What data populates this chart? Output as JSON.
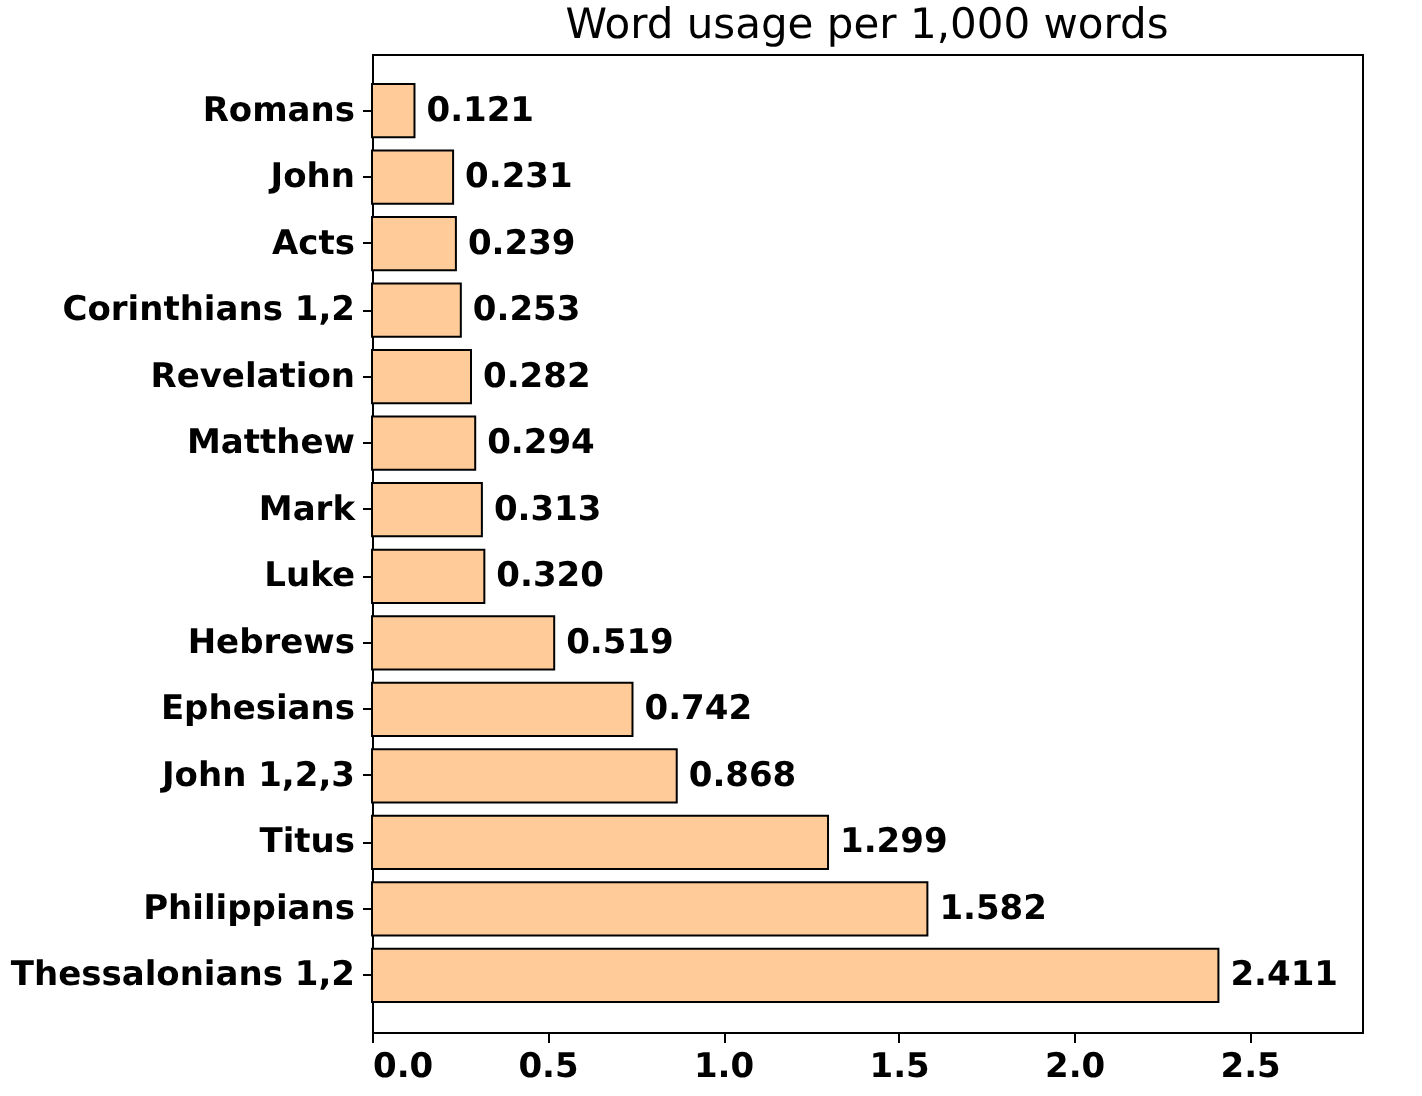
{
  "chart_data": {
    "type": "bar",
    "orientation": "horizontal",
    "title": "Word usage per 1,000 words",
    "categories": [
      "Romans",
      "John",
      "Acts",
      "Corinthians 1,2",
      "Revelation",
      "Matthew",
      "Mark",
      "Luke",
      "Hebrews",
      "Ephesians",
      "John 1,2,3",
      "Titus",
      "Philippians",
      "Thessalonians 1,2"
    ],
    "values": [
      0.121,
      0.231,
      0.239,
      0.253,
      0.282,
      0.294,
      0.313,
      0.32,
      0.519,
      0.742,
      0.868,
      1.299,
      1.582,
      2.411
    ],
    "value_labels": [
      "0.121",
      "0.231",
      "0.239",
      "0.253",
      "0.282",
      "0.294",
      "0.313",
      "0.320",
      "0.519",
      "0.742",
      "0.868",
      "1.299",
      "1.582",
      "2.411"
    ],
    "color": "#ffcc99",
    "xlim": [
      0,
      2.82
    ],
    "xticks": [
      {
        "value": 0,
        "label": "0.0"
      },
      0.5,
      {
        "value": 1,
        "label": "1.0"
      },
      1.5,
      {
        "value": 2,
        "label": "2.0"
      },
      2.5
    ],
    "grid": false
  }
}
